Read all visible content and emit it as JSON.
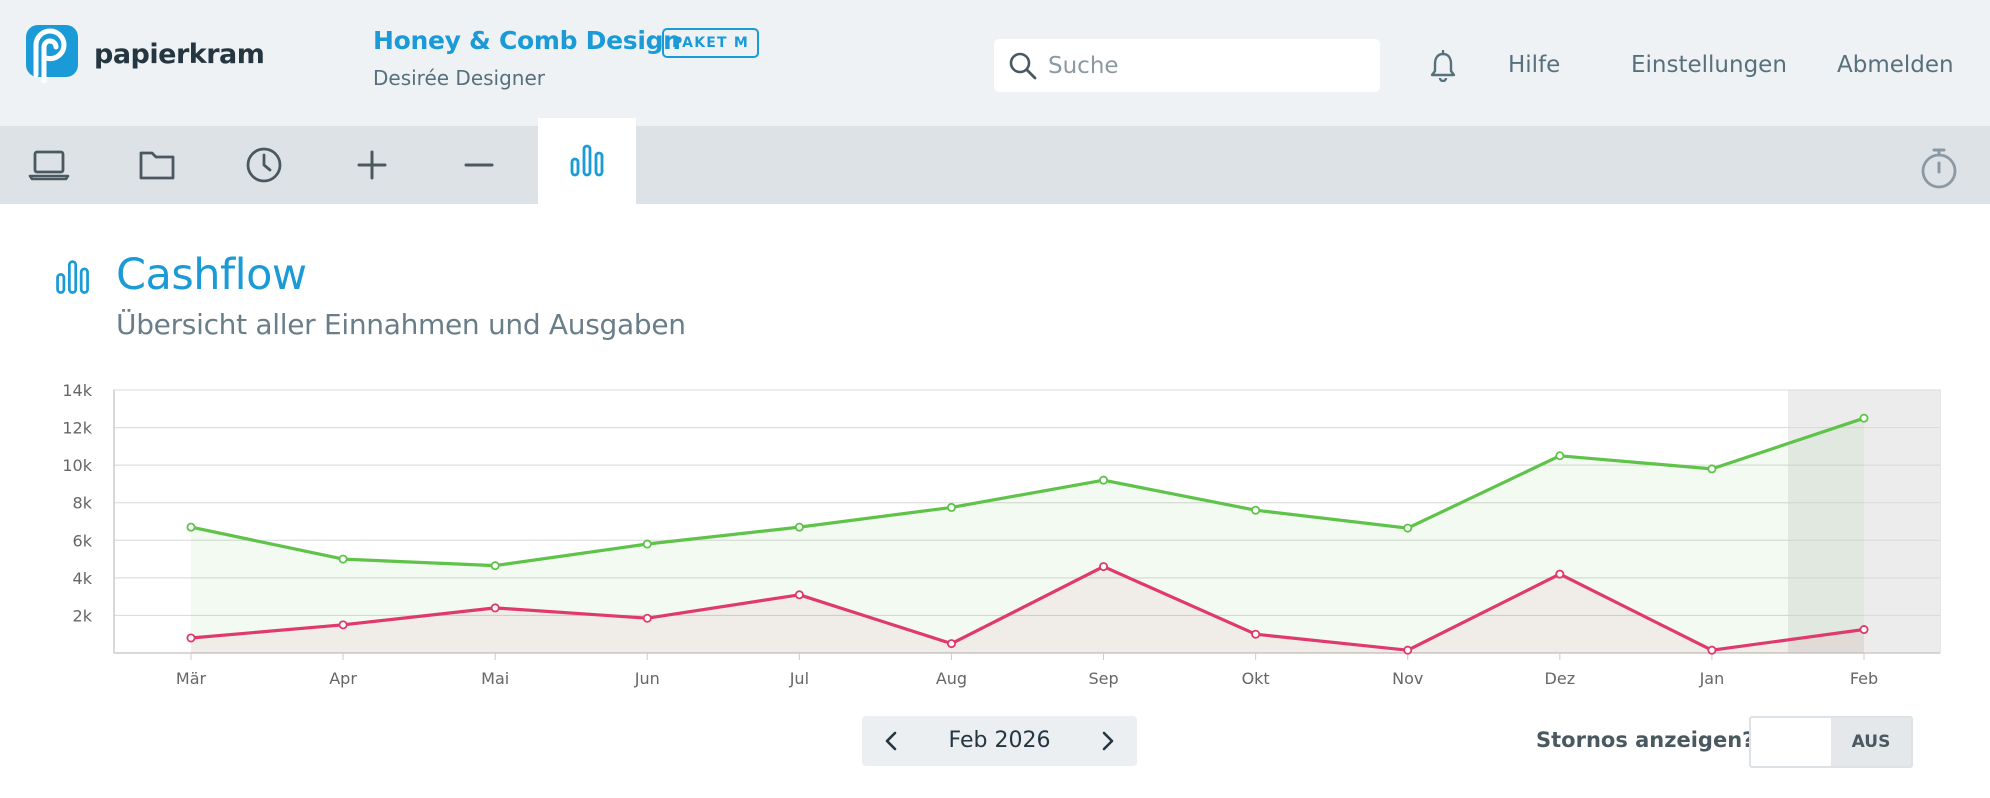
{
  "brand": {
    "name": "papierkram",
    "logo_icon": "papierkram-logo-icon",
    "accent_color": "#1a9bd7"
  },
  "account": {
    "company": "Honey & Comb Design",
    "plan_badge": "PAKET M",
    "user": "Desirée Designer"
  },
  "search": {
    "placeholder": "Suche",
    "value": ""
  },
  "nav": {
    "notifications_icon": "bell-icon",
    "help": "Hilfe",
    "settings": "Einstellungen",
    "logout": "Abmelden"
  },
  "toolbar": {
    "items": [
      {
        "name": "laptop-icon",
        "active": false
      },
      {
        "name": "folder-icon",
        "active": false
      },
      {
        "name": "clock-icon",
        "active": false
      },
      {
        "name": "plus-icon",
        "active": false
      },
      {
        "name": "minus-icon",
        "active": false
      },
      {
        "name": "bar-chart-icon",
        "active": true
      }
    ],
    "timer_icon": "stopwatch-icon"
  },
  "page": {
    "title": "Cashflow",
    "subtitle": "Übersicht aller Einnahmen und Ausgaben",
    "title_icon": "bar-chart-icon"
  },
  "chart_data": {
    "type": "area",
    "categories": [
      "Mär",
      "Apr",
      "Mai",
      "Jun",
      "Jul",
      "Aug",
      "Sep",
      "Okt",
      "Nov",
      "Dez",
      "Jan",
      "Feb"
    ],
    "series": [
      {
        "color": "#5fc34a",
        "values": [
          6700,
          5000,
          4650,
          5800,
          6700,
          7750,
          9200,
          7600,
          6650,
          10500,
          9800,
          12500
        ]
      },
      {
        "color": "#e0396d",
        "values": [
          800,
          1500,
          2400,
          1850,
          3100,
          500,
          4600,
          1000,
          150,
          4200,
          150,
          1250
        ]
      }
    ],
    "yticks": [
      "2k",
      "4k",
      "6k",
      "8k",
      "10k",
      "12k",
      "14k"
    ],
    "ylim": [
      0,
      14000
    ],
    "highlighted_category": "Feb",
    "grid": true,
    "title": "",
    "xlabel": "",
    "ylabel": ""
  },
  "period": {
    "label": "Feb 2026",
    "prev_icon": "chevron-left-icon",
    "next_icon": "chevron-right-icon"
  },
  "storno": {
    "label": "Stornos anzeigen?",
    "state": "AUS"
  }
}
